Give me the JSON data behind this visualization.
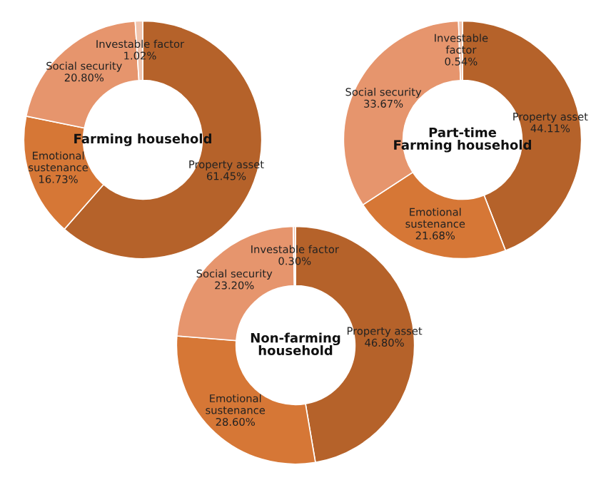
{
  "chart_data": [
    {
      "type": "donut",
      "title": "Farming household",
      "categories": [
        "Property asset",
        "Emotional\nsustenance",
        "Social security",
        "Investable factor"
      ],
      "values": [
        61.45,
        16.73,
        20.8,
        1.02
      ],
      "value_labels": [
        "61.45%",
        "16.73%",
        "20.80%",
        "1.02%"
      ],
      "colors": [
        "#b5622a",
        "#d67736",
        "#e6956d",
        "#f0c4ae"
      ]
    },
    {
      "type": "donut",
      "title": "Part-time\nFarming household",
      "categories": [
        "Property asset",
        "Emotional\nsustenance",
        "Social security",
        "Investable\nfactor"
      ],
      "values": [
        44.11,
        21.68,
        33.67,
        0.54
      ],
      "value_labels": [
        "44.11%",
        "21.68%",
        "33.67%",
        "0.54%"
      ],
      "colors": [
        "#b5622a",
        "#d67736",
        "#e6956d",
        "#f0c4ae"
      ]
    },
    {
      "type": "donut",
      "title": "Non-farming\nhousehold",
      "categories": [
        "Property asset",
        "Emotional\nsustenance",
        "Social security",
        "Investable factor"
      ],
      "values": [
        46.8,
        28.6,
        23.2,
        0.3
      ],
      "value_labels": [
        "46.80%",
        "28.60%",
        "23.20%",
        "0.30%"
      ],
      "colors": [
        "#b5622a",
        "#d67736",
        "#e6956d",
        "#f0c4ae"
      ]
    }
  ]
}
